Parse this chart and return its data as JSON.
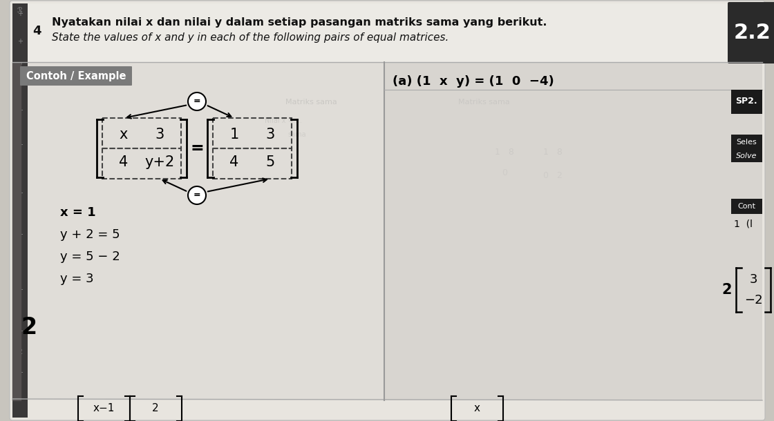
{
  "title_line1": "Nyatakan nilai x dan nilai y dalam setiap pasangan matriks sama yang berikut.",
  "title_line2": "State the values of x and y in each of the following pairs of equal matrices.",
  "question_num": "4",
  "chapter_num": "2.2",
  "sp_label": "SP2.",
  "contoh_label": "Contoh / Example",
  "seles_label": "Seles",
  "solve_label": "Solve",
  "cont_label": "Cont",
  "num1_label": "1  (l",
  "part_a_label": "(a) (1  x  y) = (1  0  −4)",
  "matrix_left": [
    [
      "x",
      "3"
    ],
    [
      "4",
      "y+2"
    ]
  ],
  "matrix_right": [
    [
      "1",
      "3"
    ],
    [
      "4",
      "5"
    ]
  ],
  "solve_steps": [
    "x = 1",
    "y + 2 = 5",
    "y = 5 − 2",
    "y = 3"
  ],
  "bottom_left_matrix1": "x−1",
  "bottom_left_matrix2": "2",
  "bottom_right_matrix": "x",
  "num2_label": "2",
  "right_matrix_top": "3",
  "right_matrix_bot": "−2",
  "page_bg": "#c8c5be",
  "book_bg": "#e8e5df",
  "content_bg": "#dddad4",
  "content_bg2": "#d5d2cc",
  "white_area": "#e2dfda",
  "contoh_bg": "#7a7a7a",
  "chapter_bg_dark": "#2a2a2a",
  "sp_bg": "#1a1a1a",
  "sidebar_bg": "#252525",
  "text_dark": "#111111",
  "text_medium": "#333333",
  "divider_line": "#999999",
  "left_strip": "#444444"
}
